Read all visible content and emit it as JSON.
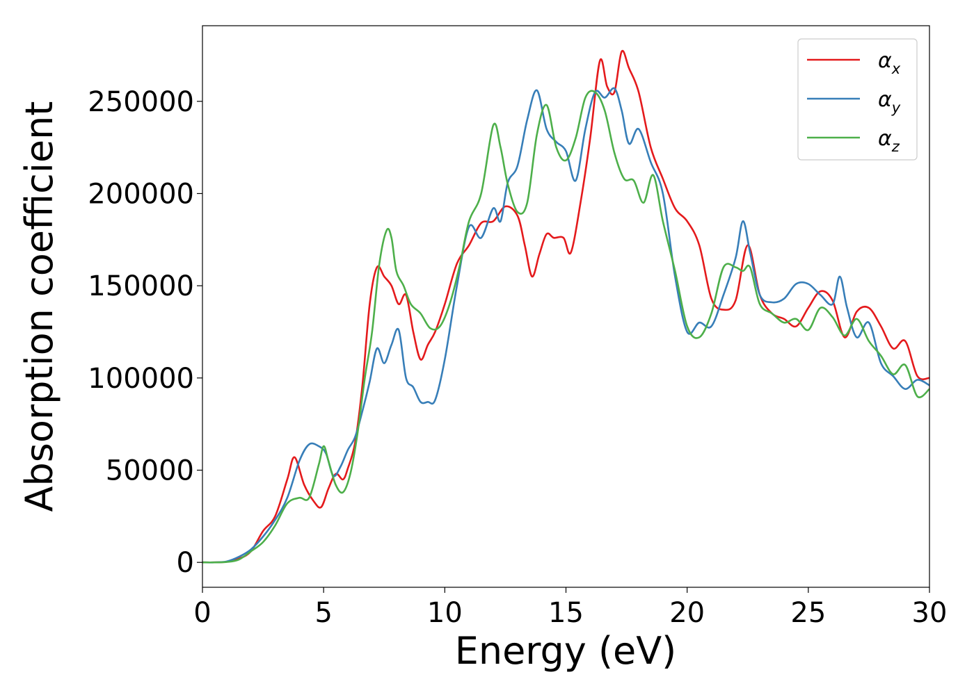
{
  "chart_data": {
    "type": "line",
    "title": "",
    "xlabel": "Energy (eV)",
    "ylabel": "Absorption coefficient",
    "xlim": [
      0,
      30
    ],
    "ylim": [
      -13500,
      291000
    ],
    "xticks": [
      "0",
      "5",
      "10",
      "15",
      "20",
      "25",
      "30"
    ],
    "yticks": [
      "0",
      "50000",
      "100000",
      "150000",
      "200000",
      "250000"
    ],
    "grid": false,
    "legend_position": "top-right",
    "series": [
      {
        "name": "α",
        "subscript": "x",
        "color": "#e41a1c",
        "x": [
          0,
          0.5,
          1,
          1.5,
          2,
          2.5,
          3,
          3.5,
          3.8,
          4.2,
          4.6,
          4.9,
          5.2,
          5.5,
          5.8,
          6.0,
          6.3,
          6.6,
          6.9,
          7.2,
          7.5,
          7.8,
          8.1,
          8.4,
          8.7,
          9.0,
          9.3,
          9.6,
          10.0,
          10.5,
          11.0,
          11.5,
          12.0,
          12.5,
          13.0,
          13.3,
          13.6,
          13.9,
          14.2,
          14.5,
          14.9,
          15.2,
          15.6,
          16.0,
          16.4,
          16.7,
          17.0,
          17.3,
          17.6,
          18.0,
          18.5,
          19.0,
          19.5,
          20.0,
          20.5,
          21.0,
          21.5,
          22.0,
          22.5,
          23.0,
          23.5,
          24.0,
          24.5,
          25.0,
          25.5,
          26.0,
          26.5,
          27.0,
          27.5,
          28.0,
          28.5,
          29.0,
          29.5,
          30.0
        ],
        "values": [
          0,
          0,
          300,
          2000,
          6000,
          17000,
          25000,
          45000,
          57000,
          42000,
          33000,
          30000,
          40000,
          48000,
          45000,
          51000,
          65000,
          96000,
          140000,
          160000,
          155000,
          150000,
          140000,
          145000,
          125000,
          110000,
          118000,
          125000,
          140000,
          162000,
          172000,
          184000,
          185000,
          193000,
          188000,
          172000,
          155000,
          167000,
          178000,
          176000,
          176000,
          168000,
          195000,
          230000,
          272000,
          258000,
          255000,
          277000,
          268000,
          255000,
          225000,
          208000,
          192000,
          185000,
          172000,
          143000,
          137000,
          142000,
          172000,
          145000,
          135000,
          132000,
          128000,
          138000,
          147000,
          142000,
          122000,
          136000,
          138000,
          128000,
          116000,
          120000,
          101000,
          100000
        ]
      },
      {
        "name": "α",
        "subscript": "y",
        "color": "#377eb8",
        "x": [
          0,
          0.5,
          1,
          1.5,
          2,
          2.5,
          3,
          3.5,
          4.0,
          4.4,
          4.8,
          5.1,
          5.4,
          5.7,
          6.0,
          6.3,
          6.6,
          6.9,
          7.2,
          7.5,
          7.8,
          8.1,
          8.4,
          8.7,
          9.0,
          9.3,
          9.6,
          10.0,
          10.5,
          11.0,
          11.5,
          12.0,
          12.3,
          12.6,
          13.0,
          13.4,
          13.8,
          14.2,
          14.6,
          15.0,
          15.4,
          15.8,
          16.2,
          16.6,
          17.0,
          17.3,
          17.6,
          18.0,
          18.5,
          19.0,
          19.5,
          20.0,
          20.5,
          21.0,
          21.5,
          22.0,
          22.3,
          22.6,
          23.0,
          23.5,
          24.0,
          24.5,
          25.0,
          25.5,
          26.0,
          26.3,
          26.6,
          27.0,
          27.5,
          28.0,
          28.5,
          29.0,
          29.5,
          30.0
        ],
        "values": [
          0,
          0,
          500,
          3000,
          7000,
          14000,
          23000,
          35000,
          55000,
          64000,
          63000,
          59000,
          47000,
          52000,
          61000,
          68000,
          82000,
          98000,
          116000,
          108000,
          118000,
          126000,
          100000,
          95000,
          87000,
          87000,
          88000,
          110000,
          150000,
          182000,
          176000,
          192000,
          185000,
          206000,
          215000,
          240000,
          256000,
          235000,
          228000,
          223000,
          207000,
          235000,
          255000,
          252000,
          257000,
          245000,
          227000,
          235000,
          217000,
          200000,
          155000,
          125000,
          130000,
          128000,
          145000,
          165000,
          185000,
          168000,
          145000,
          141000,
          143000,
          151000,
          151000,
          145000,
          140000,
          155000,
          138000,
          122000,
          130000,
          108000,
          101000,
          94000,
          99000,
          96000
        ]
      },
      {
        "name": "α",
        "subscript": "z",
        "color": "#4daf4a",
        "x": [
          0,
          0.5,
          1,
          1.5,
          2,
          2.5,
          3,
          3.5,
          4.0,
          4.4,
          4.8,
          5.0,
          5.2,
          5.5,
          5.8,
          6.1,
          6.4,
          6.7,
          7.0,
          7.3,
          7.6,
          7.8,
          8.0,
          8.3,
          8.6,
          9.0,
          9.4,
          9.8,
          10.2,
          10.6,
          11.0,
          11.5,
          12.0,
          12.3,
          12.6,
          13.0,
          13.4,
          13.8,
          14.2,
          14.6,
          15.0,
          15.4,
          15.8,
          16.2,
          16.6,
          17.0,
          17.4,
          17.8,
          18.2,
          18.6,
          19.0,
          19.5,
          20.0,
          20.5,
          21.0,
          21.5,
          22.0,
          22.3,
          22.6,
          23.0,
          23.5,
          24.0,
          24.5,
          25.0,
          25.5,
          26.0,
          26.5,
          27.0,
          27.5,
          28.0,
          28.5,
          29.0,
          29.5,
          30.0
        ],
        "values": [
          0,
          0,
          200,
          1500,
          6000,
          11000,
          20000,
          32000,
          35000,
          35000,
          53000,
          63000,
          55000,
          42000,
          38000,
          48000,
          70000,
          100000,
          125000,
          162000,
          180000,
          176000,
          158000,
          150000,
          140000,
          135000,
          127000,
          128000,
          140000,
          160000,
          185000,
          200000,
          237000,
          225000,
          205000,
          190000,
          195000,
          232000,
          248000,
          225000,
          218000,
          230000,
          252000,
          255000,
          245000,
          222000,
          208000,
          207000,
          195000,
          210000,
          185000,
          158000,
          128000,
          122000,
          135000,
          160000,
          160000,
          158000,
          160000,
          140000,
          135000,
          130000,
          132000,
          126000,
          138000,
          133000,
          123000,
          132000,
          120000,
          112000,
          102000,
          107000,
          90000,
          94000
        ]
      }
    ]
  }
}
